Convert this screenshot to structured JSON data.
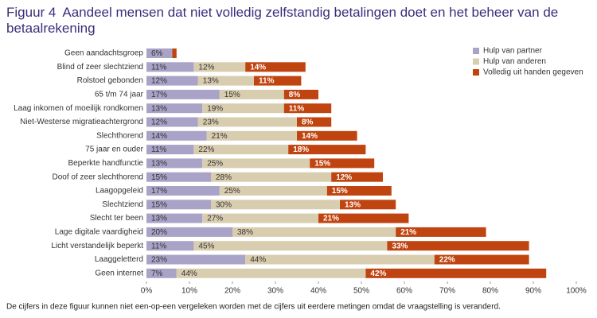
{
  "chart_data": {
    "type": "stacked-bar-horizontal",
    "figure_label": "Figuur 4",
    "title": "Aandeel mensen dat niet volledig zelfstandig betalingen doet en het beheer van de betaalrekening",
    "footnote": "De cijfers in deze figuur kunnen niet een-op-een vergeleken worden met de cijfers uit eerdere metingen omdat de vraagstelling is veranderd.",
    "categories": [
      "Geen aandachtsgroep",
      "Blind of zeer slechtziend",
      "Rolstoel gebonden",
      "65 t/m 74 jaar",
      "Laag inkomen of moeilijk rondkomen",
      "Niet-Westerse migratieachtergrond",
      "Slechthorend",
      "75 jaar en ouder",
      "Beperkte handfunctie",
      "Doof of zeer slechthorend",
      "Laagopgeleid",
      "Slechtziend",
      "Slecht ter been",
      "Lage digitale vaardigheid",
      "Licht verstandelijk beperkt",
      "Laaggeletterd",
      "Geen internet"
    ],
    "series": [
      {
        "name": "Hulp van partner",
        "color": "#a9a3c8",
        "label_color": "#333333",
        "values": [
          6,
          11,
          12,
          17,
          13,
          12,
          14,
          11,
          13,
          15,
          17,
          15,
          13,
          20,
          11,
          23,
          7
        ],
        "value_labels": [
          "6%",
          "11%",
          "12%",
          "17%",
          "13%",
          "12%",
          "14%",
          "11%",
          "13%",
          "15%",
          "17%",
          "15%",
          "13%",
          "20%",
          "11%",
          "23%",
          "7%"
        ]
      },
      {
        "name": "Hulp van anderen",
        "color": "#d9cdb0",
        "label_color": "#333333",
        "values": [
          0,
          12,
          13,
          15,
          19,
          23,
          21,
          22,
          25,
          28,
          25,
          30,
          27,
          38,
          45,
          44,
          44
        ],
        "value_labels": [
          null,
          "12%",
          "13%",
          "15%",
          "19%",
          "23%",
          "21%",
          "22%",
          "25%",
          "28%",
          "25%",
          "30%",
          "27%",
          "38%",
          "45%",
          "44%",
          "44%"
        ]
      },
      {
        "name": "Volledig uit handen gegeven",
        "color": "#c0440f",
        "label_color": "#ffffff",
        "values": [
          1,
          14,
          11,
          8,
          11,
          8,
          14,
          18,
          15,
          12,
          15,
          13,
          21,
          21,
          33,
          22,
          42
        ],
        "value_labels": [
          null,
          "14%",
          "11%",
          "8%",
          "11%",
          "8%",
          "14%",
          "18%",
          "15%",
          "12%",
          "15%",
          "13%",
          "21%",
          "21%",
          "33%",
          "22%",
          "42%"
        ]
      }
    ],
    "xlim": [
      0,
      100
    ],
    "xticks": [
      {
        "value": 0,
        "label": "0%"
      },
      {
        "value": 10,
        "label": "10%"
      },
      {
        "value": 20,
        "label": "20%"
      },
      {
        "value": 30,
        "label": "30%"
      },
      {
        "value": 40,
        "label": "40%"
      },
      {
        "value": 50,
        "label": "50%"
      },
      {
        "value": 60,
        "label": "60%"
      },
      {
        "value": 70,
        "label": "70%"
      },
      {
        "value": 80,
        "label": "80%"
      },
      {
        "value": 90,
        "label": "90%"
      },
      {
        "value": 100,
        "label": "100%"
      }
    ],
    "legend": "top-right"
  }
}
